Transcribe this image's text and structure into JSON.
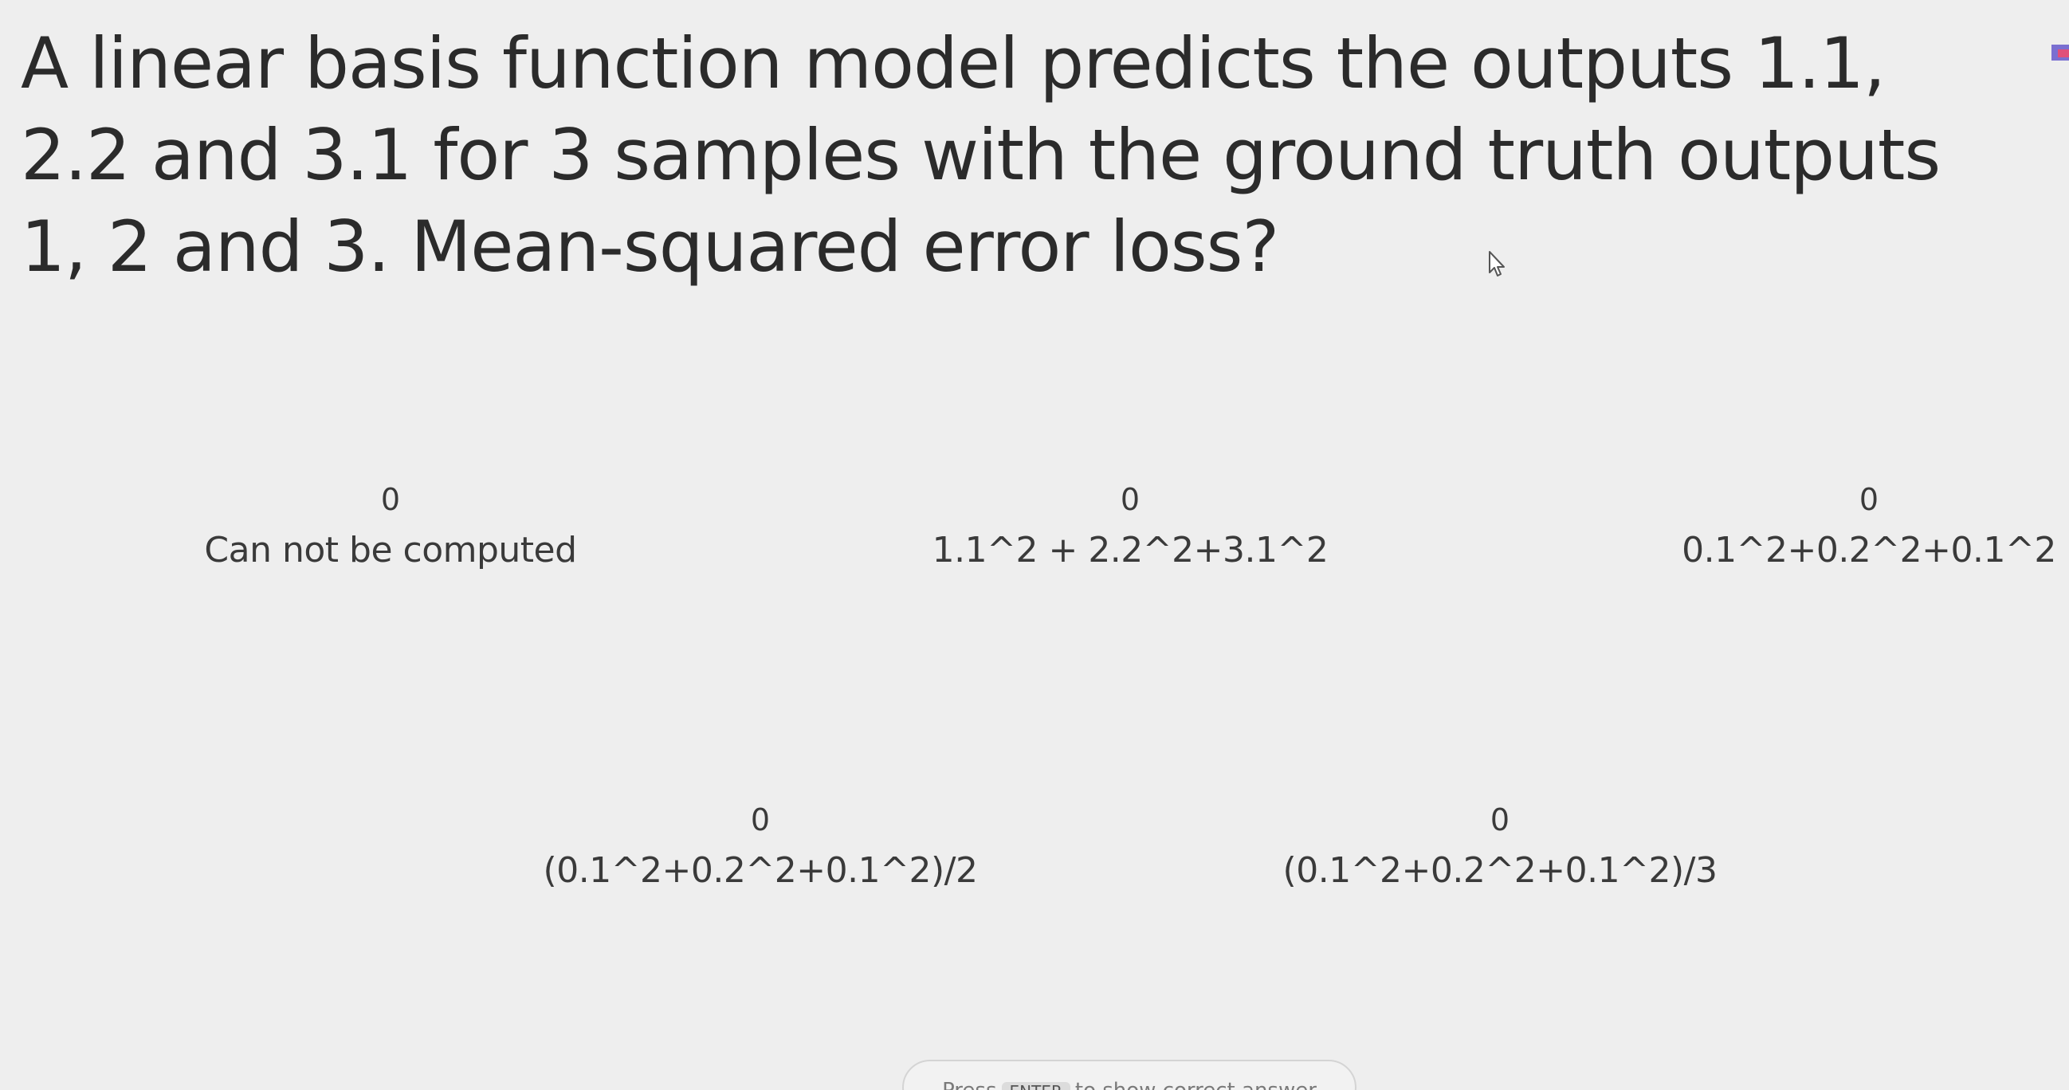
{
  "question": {
    "text": "A linear basis function model predicts the outputs 1.1, 2.2 and 3.1 for 3 samples with the ground truth outputs 1, 2 and 3. Mean-squared error loss?"
  },
  "options": [
    {
      "count": "0",
      "label": "Can not be computed"
    },
    {
      "count": "0",
      "label": "1.1^2 + 2.2^2+3.1^2"
    },
    {
      "count": "0",
      "label": "0.1^2+0.2^2+0.1^2"
    },
    {
      "count": "0",
      "label": "(0.1^2+0.2^2+0.1^2)/2"
    },
    {
      "count": "0",
      "label": "(0.1^2+0.2^2+0.1^2)/3"
    }
  ],
  "footer": {
    "hint_prefix": "Press",
    "hint_key": "ENTER",
    "hint_suffix": "to show correct answer"
  },
  "icons": {
    "cursor": "mouse-pointer-icon",
    "corner": "presenter-badge-icon"
  }
}
